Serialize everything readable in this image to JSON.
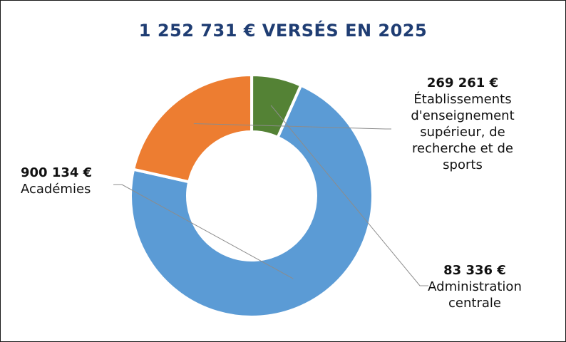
{
  "chart_data": {
    "type": "pie",
    "variant": "donut",
    "title": "1 252 731 € VERSÉS EN 2025",
    "categories": [
      "Académies",
      "Établissements d'enseignement supérieur, de recherche et de sports",
      "Administration centrale"
    ],
    "values": [
      900134,
      269261,
      83336
    ],
    "value_labels": [
      "900 134 €",
      "269 261 €",
      "83 336 €"
    ],
    "colors": [
      "#5b9bd5",
      "#ed7d31",
      "#548235"
    ],
    "legend": "none"
  }
}
